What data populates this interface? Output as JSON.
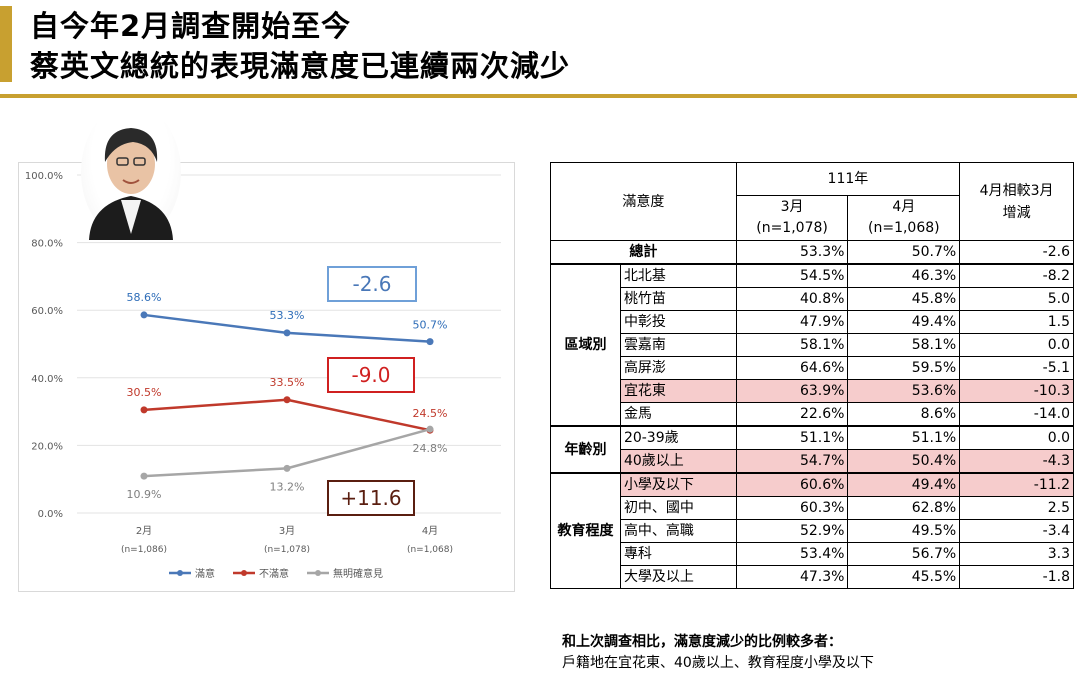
{
  "title": {
    "line1": "自今年2月調查開始至今",
    "line2": "蔡英文總統的表現滿意度已連續兩次減少"
  },
  "chart_data": {
    "type": "line",
    "categories": [
      "2月",
      "3月",
      "4月"
    ],
    "category_sublabels": [
      "(n=1,086)",
      "(n=1,078)",
      "(n=1,068)"
    ],
    "ylim": [
      0,
      100
    ],
    "yticks": [
      "0.0%",
      "20.0%",
      "40.0%",
      "60.0%",
      "80.0%",
      "100.0%"
    ],
    "series": [
      {
        "name": "滿意",
        "color": "#4a78b8",
        "values": [
          58.6,
          53.3,
          50.7
        ],
        "labels": [
          "58.6%",
          "53.3%",
          "50.7%"
        ]
      },
      {
        "name": "不滿意",
        "color": "#c0392b",
        "values": [
          30.5,
          33.5,
          24.5
        ],
        "labels": [
          "30.5%",
          "33.5%",
          "24.5%"
        ]
      },
      {
        "name": "無明確意見",
        "color": "#a6a6a6",
        "values": [
          10.9,
          13.2,
          24.8
        ],
        "labels": [
          "10.9%",
          "13.2%",
          "24.8%"
        ]
      }
    ],
    "grid": true,
    "legend": "bottom"
  },
  "callouts": {
    "satisfied": "-2.6",
    "dissatisfied": "-9.0",
    "no_opinion": "+11.6"
  },
  "table": {
    "header_satisfaction": "滿意度",
    "header_year": "111年",
    "header_mar": "3月",
    "header_mar_n": "(n=1,078)",
    "header_apr": "4月",
    "header_apr_n": "(n=1,068)",
    "header_change": "4月相較3月",
    "header_change2": "增減",
    "total": {
      "label": "總計",
      "mar": "53.3%",
      "apr": "50.7%",
      "change": "-2.6"
    },
    "groups": [
      {
        "name": "區域別",
        "rows": [
          {
            "label": "北北基",
            "mar": "54.5%",
            "apr": "46.3%",
            "change": "-8.2"
          },
          {
            "label": "桃竹苗",
            "mar": "40.8%",
            "apr": "45.8%",
            "change": "5.0"
          },
          {
            "label": "中彰投",
            "mar": "47.9%",
            "apr": "49.4%",
            "change": "1.5"
          },
          {
            "label": "雲嘉南",
            "mar": "58.1%",
            "apr": "58.1%",
            "change": "0.0"
          },
          {
            "label": "高屏澎",
            "mar": "64.6%",
            "apr": "59.5%",
            "change": "-5.1"
          },
          {
            "label": "宜花東",
            "mar": "63.9%",
            "apr": "53.6%",
            "change": "-10.3"
          },
          {
            "label": "金馬",
            "mar": "22.6%",
            "apr": "8.6%",
            "change": "-14.0"
          }
        ]
      },
      {
        "name": "年齡別",
        "rows": [
          {
            "label": "20-39歲",
            "mar": "51.1%",
            "apr": "51.1%",
            "change": "0.0"
          },
          {
            "label": "40歲以上",
            "mar": "54.7%",
            "apr": "50.4%",
            "change": "-4.3"
          }
        ]
      },
      {
        "name": "教育程度",
        "rows": [
          {
            "label": "小學及以下",
            "mar": "60.6%",
            "apr": "49.4%",
            "change": "-11.2"
          },
          {
            "label": "初中、國中",
            "mar": "60.3%",
            "apr": "62.8%",
            "change": "2.5"
          },
          {
            "label": "高中、高職",
            "mar": "52.9%",
            "apr": "49.5%",
            "change": "-3.4"
          },
          {
            "label": "專科",
            "mar": "53.4%",
            "apr": "56.7%",
            "change": "3.3"
          },
          {
            "label": "大學及以上",
            "mar": "47.3%",
            "apr": "45.5%",
            "change": "-1.8"
          }
        ]
      }
    ]
  },
  "note": {
    "line1": "和上次調查相比，滿意度減少的比例較多者：",
    "line2": "戶籍地在宜花東、40歲以上、教育程度小學及以下"
  }
}
